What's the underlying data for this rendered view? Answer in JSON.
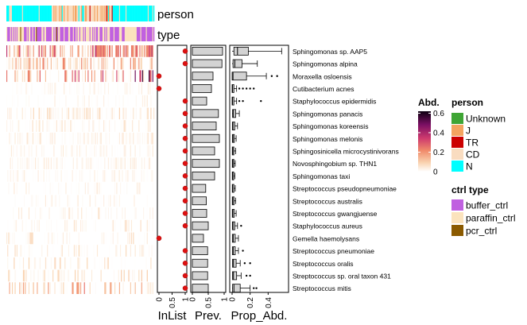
{
  "annotation_labels": {
    "person": "person",
    "type": "type"
  },
  "legend": {
    "abd_title": "Abd.",
    "abd_ticks": [
      "0.6",
      "0.4",
      "0.2",
      "0"
    ],
    "person_title": "person",
    "person_items": [
      {
        "label": "Unknown",
        "color": "#3fa535"
      },
      {
        "label": "J",
        "color": "#f4a460"
      },
      {
        "label": "TR",
        "color": "#cc0000"
      },
      {
        "label": "CD",
        "color": "#f9dcc0"
      },
      {
        "label": "N",
        "color": "#00ffff"
      }
    ],
    "type_title": "ctrl type",
    "type_items": [
      {
        "label": "buffer_ctrl",
        "color": "#c060e0"
      },
      {
        "label": "paraffin_ctrl",
        "color": "#fbe3bd"
      },
      {
        "label": "pcr_ctrl",
        "color": "#8b5a00"
      }
    ]
  },
  "chart_data": {
    "type": "heatmap",
    "panels": [
      {
        "name": "InList",
        "xlabel": "InList",
        "ticks": [
          "0",
          "0.5",
          "1"
        ],
        "xlim": [
          0,
          1
        ]
      },
      {
        "name": "Prev.",
        "xlabel": "Prev.",
        "ticks": [
          "0",
          "0.5",
          "1"
        ],
        "xlim": [
          0,
          1
        ]
      },
      {
        "name": "Prop_Abd.",
        "xlabel": "Prop_Abd.",
        "ticks": [
          "0",
          "0.2",
          "0.4"
        ],
        "xlim": [
          0,
          0.6
        ]
      }
    ],
    "rows": [
      {
        "taxon": "Sphingomonas sp. AAP5",
        "inlist": 1,
        "prev": 0.95,
        "box": {
          "min": 0.0,
          "q1": 0.02,
          "median": 0.06,
          "q3": 0.18,
          "max": 0.55
        },
        "outliers": []
      },
      {
        "taxon": "Sphingomonas alpina",
        "inlist": 1,
        "prev": 0.93,
        "box": {
          "min": 0.0,
          "q1": 0.01,
          "median": 0.03,
          "q3": 0.11,
          "max": 0.28
        },
        "outliers": []
      },
      {
        "taxon": "Moraxella osloensis",
        "inlist": 0,
        "prev": 0.65,
        "box": {
          "min": 0.0,
          "q1": 0.0,
          "median": 0.01,
          "q3": 0.16,
          "max": 0.38
        },
        "outliers": [
          0.44,
          0.5
        ]
      },
      {
        "taxon": "Cutibacterium acnes",
        "inlist": 0,
        "prev": 0.6,
        "box": {
          "min": 0.0,
          "q1": 0.0,
          "median": 0.005,
          "q3": 0.02,
          "max": 0.05
        },
        "outliers": [
          0.08,
          0.12,
          0.16,
          0.2,
          0.24
        ]
      },
      {
        "taxon": "Staphylococcus epidermidis",
        "inlist": 1,
        "prev": 0.45,
        "box": {
          "min": 0.0,
          "q1": 0.0,
          "median": 0.005,
          "q3": 0.02,
          "max": 0.05
        },
        "outliers": [
          0.08,
          0.12,
          0.32
        ]
      },
      {
        "taxon": "Sphingomonas panacis",
        "inlist": 1,
        "prev": 0.82,
        "box": {
          "min": 0.0,
          "q1": 0.005,
          "median": 0.015,
          "q3": 0.04,
          "max": 0.08
        },
        "outliers": []
      },
      {
        "taxon": "Sphingomonas koreensis",
        "inlist": 1,
        "prev": 0.75,
        "box": {
          "min": 0.0,
          "q1": 0.003,
          "median": 0.01,
          "q3": 0.03,
          "max": 0.06
        },
        "outliers": []
      },
      {
        "taxon": "Sphingomonas melonis",
        "inlist": 1,
        "prev": 0.85,
        "box": {
          "min": 0.0,
          "q1": 0.003,
          "median": 0.01,
          "q3": 0.025,
          "max": 0.045
        },
        "outliers": []
      },
      {
        "taxon": "Sphingosinicella microcystinivorans",
        "inlist": 1,
        "prev": 0.7,
        "box": {
          "min": 0.0,
          "q1": 0.002,
          "median": 0.008,
          "q3": 0.02,
          "max": 0.04
        },
        "outliers": []
      },
      {
        "taxon": "Novosphingobium sp. THN1",
        "inlist": 1,
        "prev": 0.85,
        "box": {
          "min": 0.0,
          "q1": 0.002,
          "median": 0.008,
          "q3": 0.02,
          "max": 0.035
        },
        "outliers": []
      },
      {
        "taxon": "Sphingomonas taxi",
        "inlist": 1,
        "prev": 0.7,
        "box": {
          "min": 0.0,
          "q1": 0.002,
          "median": 0.006,
          "q3": 0.018,
          "max": 0.03
        },
        "outliers": []
      },
      {
        "taxon": "Streptococcus pseudopneumoniae",
        "inlist": 1,
        "prev": 0.42,
        "box": {
          "min": 0.0,
          "q1": 0.002,
          "median": 0.006,
          "q3": 0.02,
          "max": 0.035
        },
        "outliers": []
      },
      {
        "taxon": "Streptococcus australis",
        "inlist": 1,
        "prev": 0.44,
        "box": {
          "min": 0.0,
          "q1": 0.002,
          "median": 0.008,
          "q3": 0.022,
          "max": 0.04
        },
        "outliers": []
      },
      {
        "taxon": "Streptococcus gwangjuense",
        "inlist": 1,
        "prev": 0.45,
        "box": {
          "min": 0.0,
          "q1": 0.002,
          "median": 0.008,
          "q3": 0.024,
          "max": 0.045
        },
        "outliers": []
      },
      {
        "taxon": "Staphylococcus aureus",
        "inlist": 1,
        "prev": 0.5,
        "box": {
          "min": 0.0,
          "q1": 0.003,
          "median": 0.01,
          "q3": 0.03,
          "max": 0.06
        },
        "outliers": [
          0.1
        ]
      },
      {
        "taxon": "Gemella haemolysans",
        "inlist": 0,
        "prev": 0.35,
        "box": {
          "min": 0.0,
          "q1": 0.003,
          "median": 0.012,
          "q3": 0.035,
          "max": 0.07
        },
        "outliers": []
      },
      {
        "taxon": "Streptococcus pneumoniae",
        "inlist": 1,
        "prev": 0.48,
        "box": {
          "min": 0.0,
          "q1": 0.003,
          "median": 0.012,
          "q3": 0.035,
          "max": 0.07
        },
        "outliers": [
          0.12
        ]
      },
      {
        "taxon": "Streptococcus oralis",
        "inlist": 1,
        "prev": 0.48,
        "box": {
          "min": 0.0,
          "q1": 0.004,
          "median": 0.015,
          "q3": 0.045,
          "max": 0.09
        },
        "outliers": [
          0.14,
          0.2
        ]
      },
      {
        "taxon": "Streptococcus sp. oral taxon 431",
        "inlist": 1,
        "prev": 0.48,
        "box": {
          "min": 0.0,
          "q1": 0.004,
          "median": 0.015,
          "q3": 0.05,
          "max": 0.1
        },
        "outliers": [
          0.16,
          0.2
        ]
      },
      {
        "taxon": "Streptococcus mitis",
        "inlist": 1,
        "prev": 0.5,
        "box": {
          "min": 0.0,
          "q1": 0.005,
          "median": 0.02,
          "q3": 0.09,
          "max": 0.2
        },
        "outliers": [
          0.24,
          0.27
        ]
      }
    ]
  }
}
